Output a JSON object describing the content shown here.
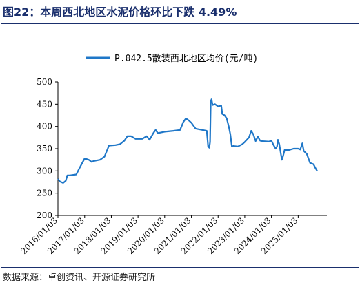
{
  "header": {
    "title": "图22：本周西北地区水泥价格环比下跌 4.49%"
  },
  "footer": {
    "source": "数据来源：卓创资讯、开源证券研究所"
  },
  "colors": {
    "title": "#1a2f6d",
    "series": "#1f77c8",
    "axis": "#000000"
  },
  "chart_data": {
    "type": "line",
    "title": "",
    "xlabel": "",
    "ylabel": "",
    "ylim": [
      200,
      500
    ],
    "yticks": [
      200,
      250,
      300,
      350,
      400,
      450,
      500
    ],
    "xlim": [
      "2016-01-03",
      "2026-01-31"
    ],
    "xtick_labels": [
      "2016/01/03",
      "2017/01/03",
      "2018/01/03",
      "2019/01/03",
      "2020/01/03",
      "2021/01/03",
      "2022/01/03",
      "2023/01/03",
      "2024/01/03",
      "2025/01/03"
    ],
    "xtick_dates": [
      "2016-01-03",
      "2017-01-03",
      "2018-01-03",
      "2019-01-03",
      "2020-01-03",
      "2021-01-03",
      "2022-01-03",
      "2023-01-03",
      "2024-01-03",
      "2025-01-03"
    ],
    "legend": {
      "position": "top-center"
    },
    "grid": false,
    "series": [
      {
        "name": "P.042.5散装西北地区均价(元/吨)",
        "points": [
          [
            "2016-01-03",
            282
          ],
          [
            "2016-02-01",
            276
          ],
          [
            "2016-03-15",
            273
          ],
          [
            "2016-04-20",
            278
          ],
          [
            "2016-05-10",
            290
          ],
          [
            "2016-06-15",
            290
          ],
          [
            "2016-09-10",
            292
          ],
          [
            "2016-10-20",
            305
          ],
          [
            "2016-12-01",
            318
          ],
          [
            "2017-01-03",
            328
          ],
          [
            "2017-03-01",
            325
          ],
          [
            "2017-04-10",
            320
          ],
          [
            "2017-05-01",
            322
          ],
          [
            "2017-08-01",
            325
          ],
          [
            "2017-10-01",
            332
          ],
          [
            "2017-12-01",
            357
          ],
          [
            "2018-03-01",
            358
          ],
          [
            "2018-05-01",
            360
          ],
          [
            "2018-07-01",
            368
          ],
          [
            "2018-08-10",
            378
          ],
          [
            "2018-10-01",
            378
          ],
          [
            "2018-12-01",
            372
          ],
          [
            "2019-03-01",
            372
          ],
          [
            "2019-05-01",
            378
          ],
          [
            "2019-06-10",
            370
          ],
          [
            "2019-08-01",
            385
          ],
          [
            "2019-09-01",
            392
          ],
          [
            "2019-10-01",
            385
          ],
          [
            "2020-01-03",
            388
          ],
          [
            "2020-05-01",
            390
          ],
          [
            "2020-08-01",
            392
          ],
          [
            "2020-09-15",
            410
          ],
          [
            "2020-10-20",
            418
          ],
          [
            "2020-12-01",
            413
          ],
          [
            "2021-01-03",
            408
          ],
          [
            "2021-03-01",
            395
          ],
          [
            "2021-06-01",
            392
          ],
          [
            "2021-08-01",
            390
          ],
          [
            "2021-08-20",
            355
          ],
          [
            "2021-09-05",
            352
          ],
          [
            "2021-09-15",
            365
          ],
          [
            "2021-09-25",
            455
          ],
          [
            "2021-10-05",
            461
          ],
          [
            "2021-10-20",
            448
          ],
          [
            "2021-11-20",
            450
          ],
          [
            "2022-01-03",
            445
          ],
          [
            "2022-02-15",
            447
          ],
          [
            "2022-03-01",
            428
          ],
          [
            "2022-04-01",
            425
          ],
          [
            "2022-05-01",
            418
          ],
          [
            "2022-06-01",
            398
          ],
          [
            "2022-06-20",
            382
          ],
          [
            "2022-07-10",
            355
          ],
          [
            "2022-08-01",
            356
          ],
          [
            "2022-10-01",
            355
          ],
          [
            "2022-12-01",
            360
          ],
          [
            "2023-01-03",
            365
          ],
          [
            "2023-03-01",
            375
          ],
          [
            "2023-04-01",
            390
          ],
          [
            "2023-05-01",
            382
          ],
          [
            "2023-06-01",
            367
          ],
          [
            "2023-07-01",
            377
          ],
          [
            "2023-08-01",
            368
          ],
          [
            "2023-09-01",
            367
          ],
          [
            "2023-12-01",
            366
          ],
          [
            "2024-01-03",
            368
          ],
          [
            "2024-02-01",
            358
          ],
          [
            "2024-03-01",
            350
          ],
          [
            "2024-03-20",
            355
          ],
          [
            "2024-04-01",
            370
          ],
          [
            "2024-04-20",
            360
          ],
          [
            "2024-05-10",
            340
          ],
          [
            "2024-05-25",
            325
          ],
          [
            "2024-06-10",
            333
          ],
          [
            "2024-07-01",
            347
          ],
          [
            "2024-09-01",
            347
          ],
          [
            "2024-11-01",
            350
          ],
          [
            "2025-01-03",
            350
          ],
          [
            "2025-02-01",
            348
          ],
          [
            "2025-03-01",
            362
          ],
          [
            "2025-03-20",
            345
          ],
          [
            "2025-05-01",
            338
          ],
          [
            "2025-06-15",
            318
          ],
          [
            "2025-08-01",
            315
          ],
          [
            "2025-09-01",
            305
          ],
          [
            "2025-09-20",
            300
          ]
        ]
      }
    ]
  }
}
